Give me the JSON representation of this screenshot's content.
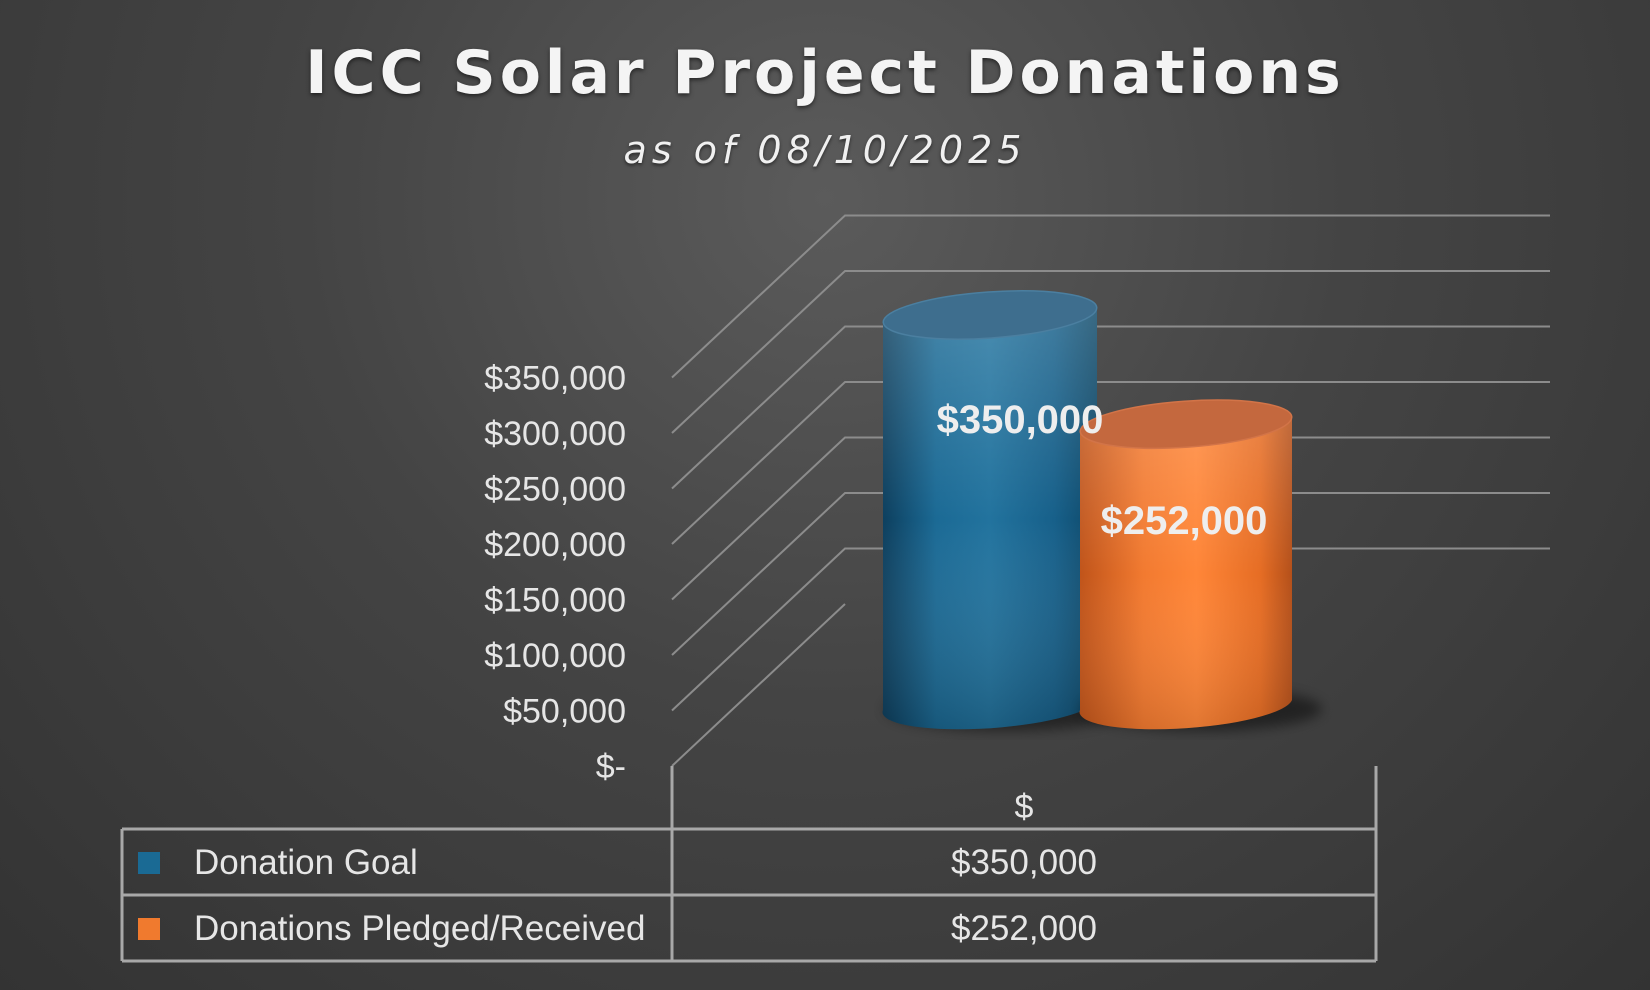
{
  "chart_data": {
    "type": "bar",
    "title": "ICC Solar Project Donations",
    "subtitle": "as of 08/10/2025",
    "categories": [
      "$"
    ],
    "series": [
      {
        "name": "Donation Goal",
        "values": [
          350000
        ],
        "label": "$350,000",
        "color": "#1a6a94"
      },
      {
        "name": "Donations Pledged/Received",
        "values": [
          252000
        ],
        "label": "$252,000",
        "color": "#f07a2e"
      }
    ],
    "ylim": [
      0,
      350000
    ],
    "yticks": [
      0,
      50000,
      100000,
      150000,
      200000,
      250000,
      300000,
      350000
    ],
    "ytick_labels": [
      "$-",
      "$50,000",
      "$100,000",
      "$150,000",
      "$200,000",
      "$250,000",
      "$300,000",
      "$350,000"
    ],
    "grid": true,
    "legend": "data-table-below",
    "data_table": {
      "header": "$",
      "rows": [
        {
          "label": "Donation Goal",
          "value": "$350,000",
          "color": "#1a6a94"
        },
        {
          "label": "Donations Pledged/Received",
          "value": "$252,000",
          "color": "#f07a2e"
        }
      ]
    }
  }
}
